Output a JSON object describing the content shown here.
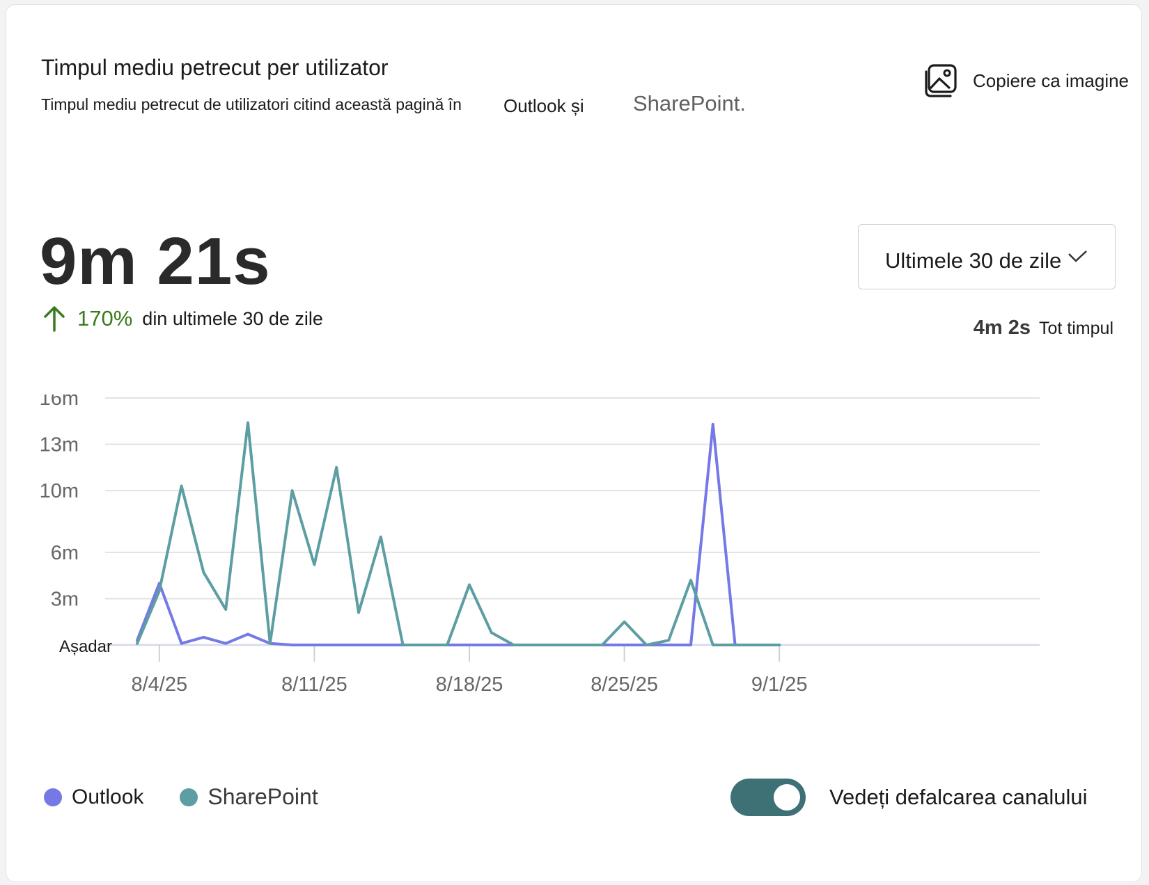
{
  "header": {
    "title": "Timpul mediu petrecut per utilizator",
    "subtitle": "Timpul mediu petrecut de utilizatori citind această pagină în",
    "subtitle_outlook": "Outlook și",
    "subtitle_sharepoint": "SharePoint.",
    "copy_label": "Copiere ca imagine",
    "copy_icon": "image-icon"
  },
  "summary": {
    "value": "9m 21s",
    "change_pct": "170%",
    "change_period": "din ultimele 30 de zile",
    "trend_color": "#3b7a1e"
  },
  "range_select": {
    "value": "Ultimele 30 de zile"
  },
  "all_time": {
    "value": "4m 2s",
    "label": "Tot timpul"
  },
  "chart_data": {
    "type": "line",
    "x": [
      "8/3/25",
      "8/4/25",
      "8/5/25",
      "8/6/25",
      "8/7/25",
      "8/8/25",
      "8/9/25",
      "8/10/25",
      "8/11/25",
      "8/12/25",
      "8/13/25",
      "8/14/25",
      "8/15/25",
      "8/16/25",
      "8/17/25",
      "8/18/25",
      "8/19/25",
      "8/20/25",
      "8/21/25",
      "8/22/25",
      "8/23/25",
      "8/24/25",
      "8/25/25",
      "8/26/25",
      "8/27/25",
      "8/28/25",
      "8/29/25",
      "8/30/25",
      "8/31/25",
      "9/1/25"
    ],
    "x_ticks": [
      "8/4/25",
      "8/11/25",
      "8/18/25",
      "8/25/25",
      "9/1/25"
    ],
    "y_ticks": [
      {
        "value": 0,
        "label": "Așadar"
      },
      {
        "value": 3,
        "label": "3m"
      },
      {
        "value": 6,
        "label": "6m"
      },
      {
        "value": 10,
        "label": "10m"
      },
      {
        "value": 13,
        "label": "13m"
      },
      {
        "value": 16,
        "label": "16m"
      }
    ],
    "ylim": [
      0,
      16
    ],
    "grid": true,
    "series": [
      {
        "name": "Outlook",
        "color": "#7479e6",
        "values": [
          0.3,
          4.0,
          0.1,
          0.5,
          0.1,
          0.7,
          0.1,
          0,
          0,
          0,
          0,
          0,
          0,
          0,
          0,
          0,
          0,
          0,
          0,
          0,
          0,
          0,
          0,
          0,
          0,
          0,
          14.3,
          0,
          0,
          0
        ]
      },
      {
        "name": "SharePoint",
        "color": "#5c9ea2",
        "values": [
          0.1,
          3.5,
          10.3,
          4.7,
          2.3,
          14.4,
          0.1,
          10.0,
          5.2,
          11.5,
          2.1,
          7.0,
          0,
          0,
          0,
          3.9,
          0.8,
          0,
          0,
          0,
          0,
          0,
          1.5,
          0,
          0.3,
          4.2,
          0,
          0,
          0,
          0
        ]
      }
    ],
    "legend": "bottom-left"
  },
  "toggle": {
    "label": "Vedeți defalcarea canalului",
    "on": true,
    "color": "#3d7176"
  }
}
